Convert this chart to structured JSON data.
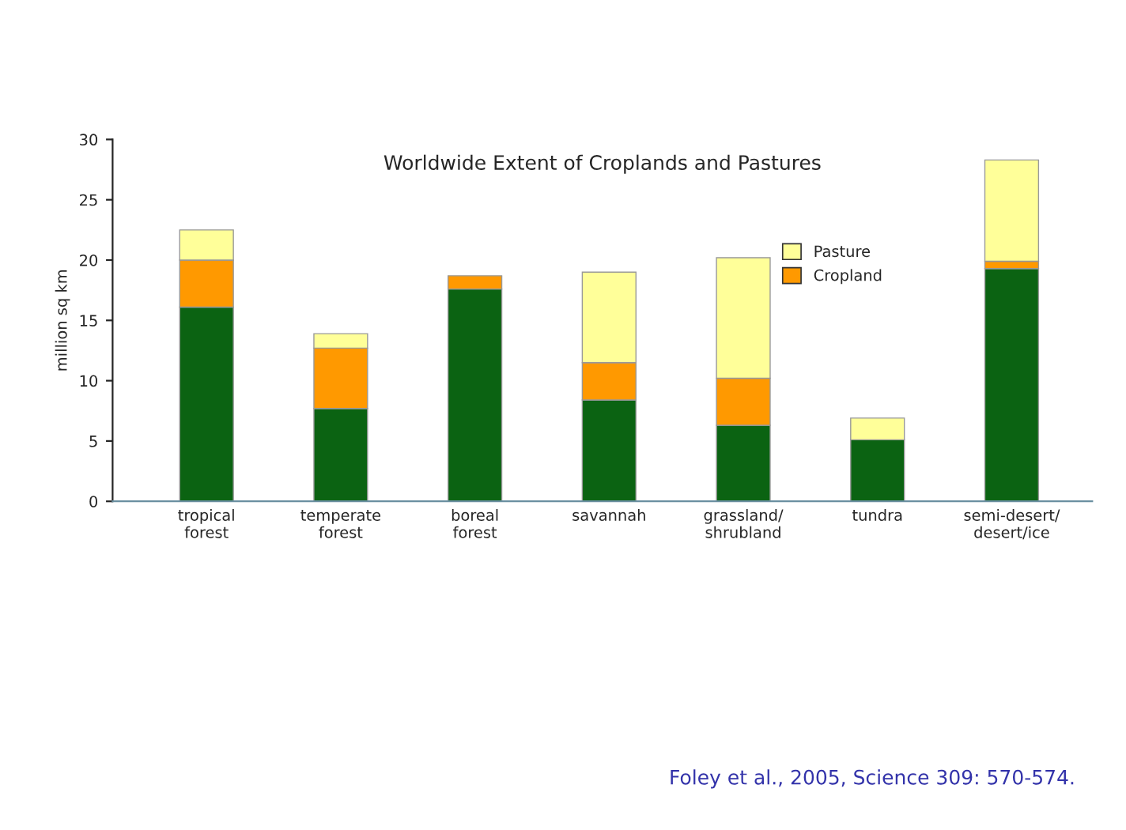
{
  "chart_data": {
    "type": "bar",
    "title": "Worldwide Extent of Croplands and Pastures",
    "ylabel": "million sq km",
    "categories": [
      "tropical\nforest",
      "temperate\nforest",
      "boreal\nforest",
      "savannah",
      "grassland/\nshrubland",
      "tundra",
      "semi-desert/\ndesert/ice"
    ],
    "stacked": true,
    "series": [
      {
        "color": "#0b6312",
        "values": [
          16.1,
          7.7,
          17.6,
          8.4,
          6.3,
          5.1,
          19.3
        ]
      },
      {
        "name": "Cropland",
        "color": "#ff9900",
        "values": [
          3.9,
          5.0,
          1.1,
          3.1,
          3.9,
          null,
          0.6
        ]
      },
      {
        "name": "Pasture",
        "color": "#ffff99",
        "values": [
          2.5,
          1.2,
          null,
          7.5,
          10.0,
          1.8,
          8.4
        ]
      }
    ],
    "ylim": [
      0,
      30
    ],
    "yticks": [
      0,
      5,
      10,
      15,
      20,
      25,
      30
    ],
    "grid": false,
    "legend": "top right",
    "annotations": [
      "Foley et al., 2005, Science 309: 570-574."
    ]
  }
}
